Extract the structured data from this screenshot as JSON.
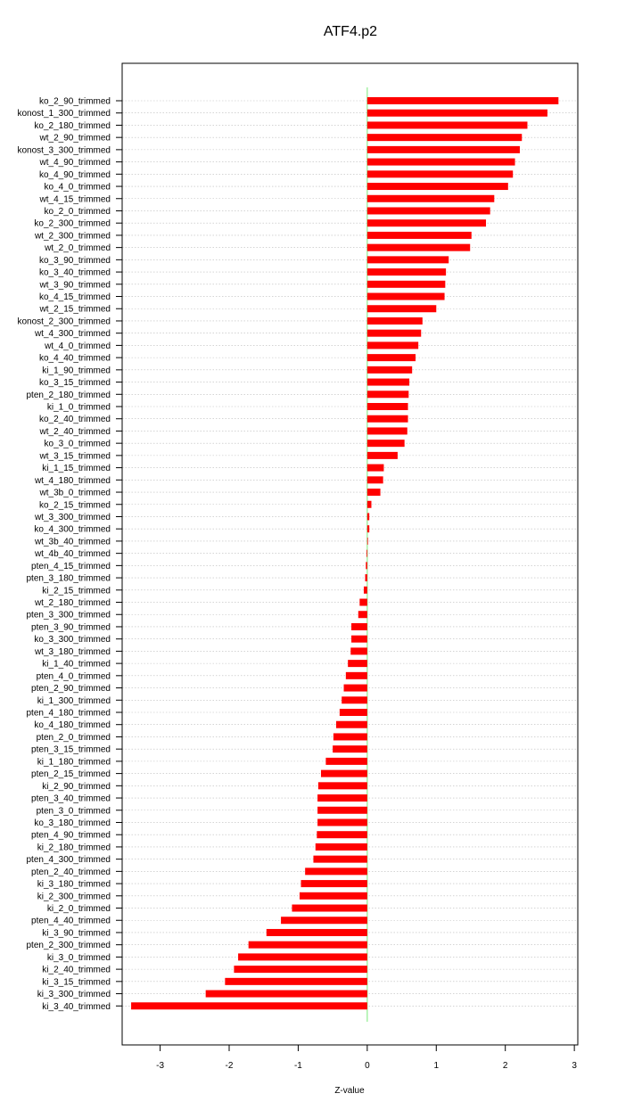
{
  "chart_data": {
    "type": "bar",
    "orientation": "horizontal",
    "title": "ATF4.p2",
    "xlabel": "Z-value",
    "ylabel": "",
    "xlim": [
      -3.55,
      3.05
    ],
    "xticks": [
      -3,
      -2,
      -1,
      0,
      1,
      2,
      3
    ],
    "grid": true,
    "bar_color": "#ff0000",
    "zero_line_color": "#90ee90",
    "categories": [
      "ko_2_90_trimmed",
      "konost_1_300_trimmed",
      "ko_2_180_trimmed",
      "wt_2_90_trimmed",
      "konost_3_300_trimmed",
      "wt_4_90_trimmed",
      "ko_4_90_trimmed",
      "ko_4_0_trimmed",
      "wt_4_15_trimmed",
      "ko_2_0_trimmed",
      "ko_2_300_trimmed",
      "wt_2_300_trimmed",
      "wt_2_0_trimmed",
      "ko_3_90_trimmed",
      "ko_3_40_trimmed",
      "wt_3_90_trimmed",
      "ko_4_15_trimmed",
      "wt_2_15_trimmed",
      "konost_2_300_trimmed",
      "wt_4_300_trimmed",
      "wt_4_0_trimmed",
      "ko_4_40_trimmed",
      "ki_1_90_trimmed",
      "ko_3_15_trimmed",
      "pten_2_180_trimmed",
      "ki_1_0_trimmed",
      "ko_2_40_trimmed",
      "wt_2_40_trimmed",
      "ko_3_0_trimmed",
      "wt_3_15_trimmed",
      "ki_1_15_trimmed",
      "wt_4_180_trimmed",
      "wt_3b_0_trimmed",
      "ko_2_15_trimmed",
      "wt_3_300_trimmed",
      "ko_4_300_trimmed",
      "wt_3b_40_trimmed",
      "wt_4b_40_trimmed",
      "pten_4_15_trimmed",
      "pten_3_180_trimmed",
      "ki_2_15_trimmed",
      "wt_2_180_trimmed",
      "pten_3_300_trimmed",
      "pten_3_90_trimmed",
      "ko_3_300_trimmed",
      "wt_3_180_trimmed",
      "ki_1_40_trimmed",
      "pten_4_0_trimmed",
      "pten_2_90_trimmed",
      "ki_1_300_trimmed",
      "pten_4_180_trimmed",
      "ko_4_180_trimmed",
      "pten_2_0_trimmed",
      "pten_3_15_trimmed",
      "ki_1_180_trimmed",
      "pten_2_15_trimmed",
      "ki_2_90_trimmed",
      "pten_3_40_trimmed",
      "pten_3_0_trimmed",
      "ko_3_180_trimmed",
      "pten_4_90_trimmed",
      "ki_2_180_trimmed",
      "pten_4_300_trimmed",
      "pten_2_40_trimmed",
      "ki_3_180_trimmed",
      "ki_2_300_trimmed",
      "ki_2_0_trimmed",
      "pten_4_40_trimmed",
      "ki_3_90_trimmed",
      "pten_2_300_trimmed",
      "ki_3_0_trimmed",
      "ki_2_40_trimmed",
      "ki_3_15_trimmed",
      "ki_3_300_trimmed",
      "ki_3_40_trimmed"
    ],
    "values": [
      2.77,
      2.61,
      2.32,
      2.24,
      2.21,
      2.14,
      2.11,
      2.04,
      1.84,
      1.78,
      1.72,
      1.51,
      1.49,
      1.18,
      1.14,
      1.13,
      1.12,
      1.0,
      0.8,
      0.78,
      0.74,
      0.7,
      0.65,
      0.61,
      0.6,
      0.59,
      0.59,
      0.58,
      0.54,
      0.44,
      0.24,
      0.23,
      0.19,
      0.06,
      0.03,
      0.03,
      0.01,
      -0.01,
      -0.02,
      -0.03,
      -0.05,
      -0.11,
      -0.13,
      -0.23,
      -0.23,
      -0.24,
      -0.28,
      -0.31,
      -0.34,
      -0.37,
      -0.4,
      -0.45,
      -0.49,
      -0.5,
      -0.6,
      -0.67,
      -0.71,
      -0.72,
      -0.72,
      -0.72,
      -0.73,
      -0.75,
      -0.78,
      -0.9,
      -0.96,
      -0.98,
      -1.09,
      -1.25,
      -1.46,
      -1.72,
      -1.87,
      -1.93,
      -2.06,
      -2.34,
      -3.42
    ]
  }
}
